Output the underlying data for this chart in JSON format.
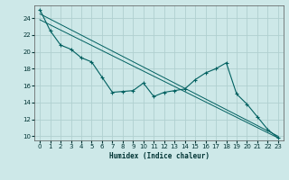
{
  "xlabel": "Humidex (Indice chaleur)",
  "ylabel": "",
  "background_color": "#cde8e8",
  "grid_color": "#b0d0d0",
  "line_color": "#006060",
  "x_ticks": [
    0,
    1,
    2,
    3,
    4,
    5,
    6,
    7,
    8,
    9,
    10,
    11,
    12,
    13,
    14,
    15,
    16,
    17,
    18,
    19,
    20,
    21,
    22,
    23
  ],
  "y_ticks": [
    10,
    12,
    14,
    16,
    18,
    20,
    22,
    24
  ],
  "xlim": [
    -0.5,
    23.5
  ],
  "ylim": [
    9.5,
    25.5
  ],
  "series1_x": [
    0,
    1,
    2,
    3,
    4,
    5,
    6,
    7,
    8,
    9,
    10,
    11,
    12,
    13,
    14,
    15,
    16,
    17,
    18,
    19,
    20,
    21,
    22,
    23
  ],
  "series1_y": [
    25.0,
    22.5,
    20.8,
    20.3,
    19.3,
    18.8,
    17.0,
    15.2,
    15.3,
    15.4,
    16.3,
    14.7,
    15.2,
    15.4,
    15.6,
    16.7,
    17.5,
    18.0,
    18.7,
    15.0,
    13.8,
    12.3,
    10.8,
    9.8
  ],
  "trend1_x": [
    0,
    23
  ],
  "trend1_y": [
    24.5,
    10.0
  ],
  "trend2_x": [
    0,
    23
  ],
  "trend2_y": [
    23.8,
    9.8
  ],
  "figsize": [
    3.2,
    2.0
  ],
  "dpi": 100
}
